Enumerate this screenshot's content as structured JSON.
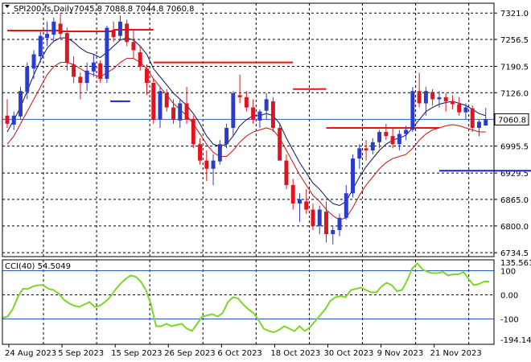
{
  "header": {
    "symbol": "SPI200.fs,Daily",
    "ohlc": "7045.8 7088.8 7044.8 7060.8"
  },
  "chart_data": [
    {
      "type": "candlestick",
      "price_axis_ticks": [
        "7321.0",
        "7256.5",
        "7190.5",
        "7126.0",
        "7060.8",
        "6995.5",
        "6929.5",
        "6865.0",
        "6800.0",
        "6734.5"
      ],
      "current_price_label": "7060.8",
      "ylim": [
        6725,
        7345
      ],
      "date_labels": [
        "24 Aug 2023",
        "5 Sep 2023",
        "15 Sep 2023",
        "26 Sep 2023",
        "6 Oct 2023",
        "18 Oct 2023",
        "30 Oct 2023",
        "9 Nov 2023",
        "21 Nov 2023"
      ],
      "date_label_index": [
        0,
        8,
        16,
        24,
        32,
        40,
        48,
        56,
        64
      ],
      "colors": {
        "bull": "#2a3bd0",
        "bear": "#e0141e",
        "fast_ma": "#101060",
        "slow_ma": "#d01010",
        "level_line": "#2c5ab8",
        "stop_red": "#e81414",
        "stop_blue": "#1a22d8"
      },
      "candles": [
        [
          7070,
          7110,
          7040,
          7050
        ],
        [
          7048,
          7080,
          7035,
          7070
        ],
        [
          7068,
          7140,
          7060,
          7130
        ],
        [
          7128,
          7200,
          7110,
          7190
        ],
        [
          7185,
          7230,
          7160,
          7220
        ],
        [
          7215,
          7275,
          7200,
          7265
        ],
        [
          7260,
          7300,
          7240,
          7270
        ],
        [
          7268,
          7310,
          7250,
          7300
        ],
        [
          7295,
          7320,
          7260,
          7270
        ],
        [
          7272,
          7285,
          7180,
          7200
        ],
        [
          7195,
          7215,
          7150,
          7165
        ],
        [
          7165,
          7175,
          7110,
          7150
        ],
        [
          7150,
          7200,
          7130,
          7180
        ],
        [
          7178,
          7220,
          7165,
          7200
        ],
        [
          7198,
          7205,
          7150,
          7160
        ],
        [
          7160,
          7290,
          7150,
          7285
        ],
        [
          7280,
          7300,
          7250,
          7262
        ],
        [
          7265,
          7315,
          7255,
          7300
        ],
        [
          7295,
          7305,
          7240,
          7250
        ],
        [
          7250,
          7280,
          7210,
          7230
        ],
        [
          7225,
          7240,
          7180,
          7190
        ],
        [
          7185,
          7195,
          7120,
          7150
        ],
        [
          7150,
          7160,
          7050,
          7060
        ],
        [
          7060,
          7140,
          7040,
          7130
        ],
        [
          7125,
          7135,
          7080,
          7090
        ],
        [
          7090,
          7110,
          7050,
          7060
        ],
        [
          7058,
          7110,
          7040,
          7100
        ],
        [
          7100,
          7140,
          7050,
          7060
        ],
        [
          7062,
          7070,
          6990,
          7000
        ],
        [
          7000,
          7015,
          6950,
          6960
        ],
        [
          6960,
          6985,
          6910,
          6940
        ],
        [
          6940,
          6975,
          6900,
          6960
        ],
        [
          6958,
          7010,
          6950,
          7000
        ],
        [
          7000,
          7050,
          6990,
          7040
        ],
        [
          7040,
          7130,
          7020,
          7125
        ],
        [
          7120,
          7170,
          7100,
          7115
        ],
        [
          7115,
          7130,
          7080,
          7090
        ],
        [
          7090,
          7110,
          7050,
          7060
        ],
        [
          7058,
          7085,
          7040,
          7080
        ],
        [
          7082,
          7125,
          7060,
          7110
        ],
        [
          7105,
          7115,
          7030,
          7040
        ],
        [
          7040,
          7050,
          6960,
          6960
        ],
        [
          6960,
          6975,
          6890,
          6900
        ],
        [
          6900,
          6915,
          6840,
          6855
        ],
        [
          6855,
          6880,
          6810,
          6865
        ],
        [
          6860,
          6890,
          6830,
          6840
        ],
        [
          6840,
          6855,
          6790,
          6800
        ],
        [
          6800,
          6850,
          6780,
          6840
        ],
        [
          6835,
          6860,
          6760,
          6780
        ],
        [
          6780,
          6800,
          6755,
          6790
        ],
        [
          6790,
          6830,
          6775,
          6820
        ],
        [
          6820,
          6900,
          6815,
          6880
        ],
        [
          6880,
          6975,
          6870,
          6965
        ],
        [
          6965,
          7000,
          6940,
          6990
        ],
        [
          6990,
          7010,
          6960,
          6985
        ],
        [
          6985,
          7015,
          6975,
          7005
        ],
        [
          7005,
          7035,
          6990,
          7030
        ],
        [
          7030,
          7050,
          7010,
          7020
        ],
        [
          7020,
          7040,
          6990,
          7000
        ],
        [
          7000,
          7035,
          6985,
          7025
        ],
        [
          7025,
          7045,
          7010,
          7035
        ],
        [
          7035,
          7140,
          7030,
          7130
        ],
        [
          7130,
          7175,
          7090,
          7100
        ],
        [
          7100,
          7140,
          7070,
          7130
        ],
        [
          7128,
          7135,
          7095,
          7110
        ],
        [
          7110,
          7130,
          7090,
          7115
        ],
        [
          7115,
          7125,
          7080,
          7105
        ],
        [
          7105,
          7120,
          7085,
          7098
        ],
        [
          7098,
          7115,
          7070,
          7078
        ],
        [
          7078,
          7100,
          7060,
          7090
        ],
        [
          7088,
          7095,
          7030,
          7040
        ],
        [
          7040,
          7060,
          7020,
          7055
        ],
        [
          7045.8,
          7088.8,
          7044.8,
          7060.8
        ]
      ],
      "series": [
        {
          "values": [
            7030,
            7060,
            7090,
            7130,
            7170,
            7205,
            7235,
            7252,
            7260,
            7260,
            7250,
            7235,
            7225,
            7220,
            7212,
            7225,
            7240,
            7255,
            7260,
            7255,
            7240,
            7220,
            7185,
            7165,
            7145,
            7125,
            7110,
            7095,
            7075,
            7050,
            7020,
            7000,
            6995,
            7000,
            7020,
            7045,
            7060,
            7070,
            7070,
            7075,
            7070,
            7050,
            7015,
            6985,
            6955,
            6930,
            6905,
            6890,
            6870,
            6855,
            6850,
            6860,
            6890,
            6920,
            6945,
            6965,
            6985,
            7000,
            7010,
            7015,
            7022,
            7040,
            7060,
            7080,
            7090,
            7098,
            7102,
            7105,
            7100,
            7095,
            7085,
            7075,
            7070
          ]
        },
        {
          "values": [
            7000,
            7020,
            7050,
            7080,
            7110,
            7140,
            7170,
            7190,
            7200,
            7200,
            7195,
            7185,
            7175,
            7170,
            7165,
            7175,
            7185,
            7200,
            7210,
            7210,
            7200,
            7185,
            7160,
            7140,
            7120,
            7100,
            7085,
            7070,
            7050,
            7025,
            7000,
            6980,
            6970,
            6970,
            6985,
            7005,
            7020,
            7030,
            7035,
            7040,
            7035,
            7015,
            6985,
            6955,
            6925,
            6900,
            6875,
            6860,
            6840,
            6825,
            6815,
            6820,
            6845,
            6875,
            6900,
            6920,
            6940,
            6955,
            6965,
            6970,
            6975,
            6990,
            7010,
            7025,
            7035,
            7040,
            7045,
            7048,
            7045,
            7040,
            7035,
            7030,
            7030
          ]
        }
      ],
      "stops_red": [
        [
          0,
          8,
          7278
        ],
        [
          8,
          16,
          7276
        ],
        [
          16,
          22,
          7280
        ],
        [
          22,
          32,
          7200
        ],
        [
          32,
          33,
          7200
        ],
        [
          33,
          37,
          7200
        ],
        [
          37,
          43,
          7200
        ],
        [
          43,
          47,
          7135
        ],
        [
          47,
          48,
          7135
        ],
        [
          48,
          65,
          7040
        ]
      ],
      "stops_blue": [
        [
          15.5,
          18.5,
          7105
        ],
        [
          65,
          82,
          6935
        ]
      ]
    },
    {
      "type": "line",
      "indicator_label": "CCI(40) 54.5049",
      "scale_top_label": "135.5619",
      "scale_bottom_label": "-194.1417",
      "levels": [
        "100",
        "0.00",
        "-100"
      ],
      "ylim": [
        -205,
        145
      ],
      "values": [
        -95,
        -90,
        -60,
        -10,
        25,
        25,
        35,
        40,
        40,
        25,
        20,
        5,
        -20,
        -35,
        -45,
        -50,
        -40,
        -30,
        -50,
        -45,
        -30,
        -10,
        20,
        45,
        65,
        80,
        75,
        55,
        20,
        -40,
        -130,
        -130,
        -120,
        -130,
        -125,
        -120,
        -140,
        -150,
        -120,
        -90,
        -85,
        -80,
        -90,
        -75,
        -30,
        -10,
        -15,
        -40,
        -60,
        -75,
        -105,
        -140,
        -150,
        -155,
        -145,
        -130,
        -140,
        -150,
        -130,
        -150,
        -135,
        -110,
        -85,
        -60,
        -25,
        -10,
        -5,
        -10,
        20,
        25,
        30,
        20,
        10,
        10,
        35,
        50,
        40,
        15,
        20,
        60,
        110,
        130,
        105,
        95,
        90,
        90,
        95,
        80,
        85,
        85,
        95,
        65,
        40,
        45,
        55,
        55
      ],
      "color": "#7ed628"
    }
  ]
}
